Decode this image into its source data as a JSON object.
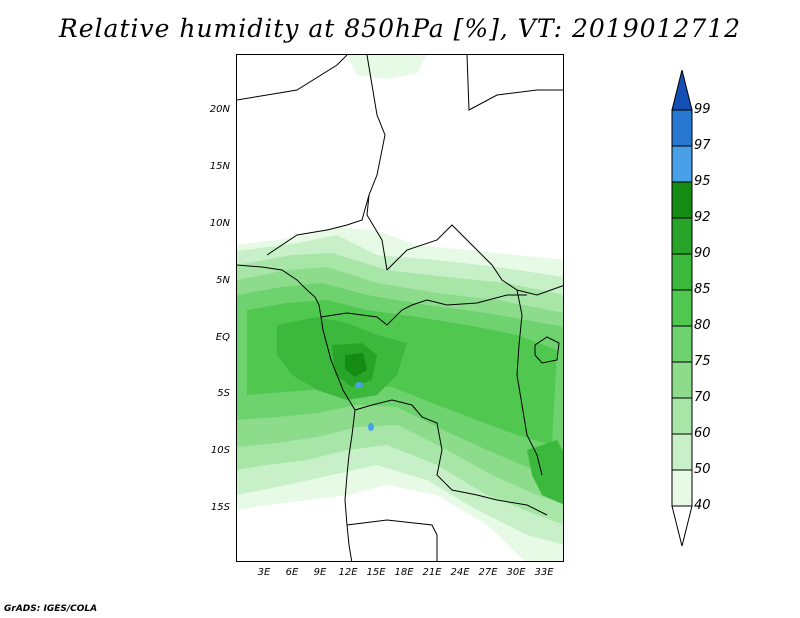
{
  "title": "Relative humidity at 850hPa [%], VT: 2019012712",
  "credit": "GrADS: IGES/COLA",
  "map": {
    "lat_ticks": [
      "20N",
      "15N",
      "10N",
      "5N",
      "EQ",
      "5S",
      "10S",
      "15S"
    ],
    "lon_ticks": [
      "3E",
      "6E",
      "9E",
      "12E",
      "15E",
      "18E",
      "21E",
      "24E",
      "27E",
      "30E",
      "33E"
    ]
  },
  "colorbar": {
    "levels": [
      "40",
      "50",
      "60",
      "70",
      "75",
      "80",
      "85",
      "90",
      "92",
      "95",
      "97",
      "99"
    ],
    "colors": {
      "c40_50": "#e6fae6",
      "c50_60": "#c8f0c8",
      "c60_70": "#a8e6a8",
      "c70_75": "#8cdc8c",
      "c75_80": "#6ed26e",
      "c80_85": "#50c850",
      "c85_90": "#3cb83c",
      "c90_92": "#28a428",
      "c92_95": "#148c14",
      "c95_97": "#4aa0e6",
      "c97_99": "#2878d2",
      "c99_up": "#1450b4"
    }
  }
}
